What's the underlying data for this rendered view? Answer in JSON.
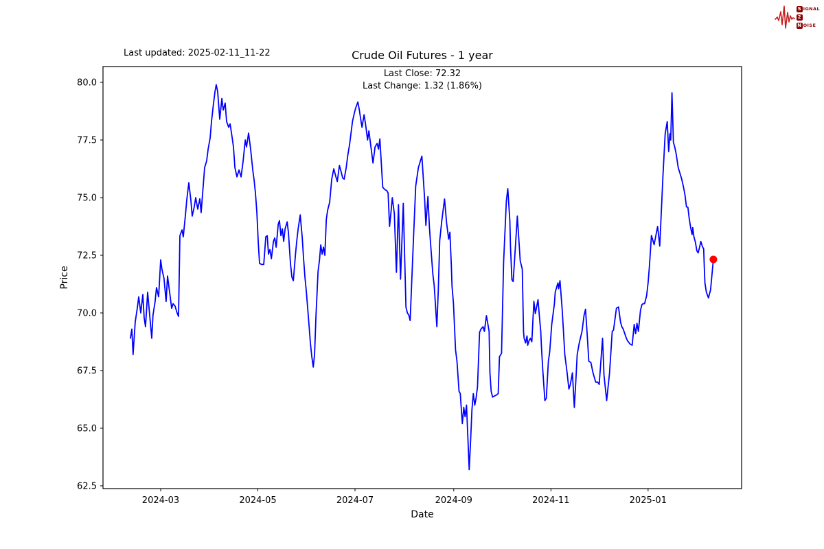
{
  "header": {
    "last_updated": "Last updated: 2025-02-11_11-22"
  },
  "logo": {
    "wave_color": "#c41f1f",
    "text_color": "#8b0000",
    "s": "S",
    "signal_rest": "IGNAL",
    "two": "2",
    "n": "N",
    "noise_rest": "OISE"
  },
  "chart_data": {
    "type": "line",
    "title": "Crude Oil Futures - 1 year",
    "annotation": {
      "line1": "Last Close: 72.32",
      "line2": "Last Change: 1.32 (1.86%)"
    },
    "xlabel": "Date",
    "ylabel": "Price",
    "last_close": 72.32,
    "last_change": "1.32 (1.86%)",
    "line_color": "#0000ff",
    "marker_color": "#ff0000",
    "x_tick_labels": [
      "2024-03",
      "2024-05",
      "2024-07",
      "2024-09",
      "2024-11",
      "2025-01"
    ],
    "x_tick_days": [
      19,
      80,
      141,
      203,
      264,
      325
    ],
    "y_tick_labels": [
      "62.5",
      "65.0",
      "67.5",
      "70.0",
      "72.5",
      "75.0",
      "77.5",
      "80.0"
    ],
    "y_ticks": [
      62.5,
      65.0,
      67.5,
      70.0,
      72.5,
      75.0,
      77.5,
      80.0
    ],
    "start_date": "2024-02-11",
    "end_date": "2025-02-11",
    "xlim_days": [
      -17.2,
      383.7
    ],
    "ylim": [
      62.38,
      80.685
    ],
    "legend": null,
    "grid": false,
    "series": [
      [
        0,
        68.9
      ],
      [
        0.9,
        69.3
      ],
      [
        1.7,
        68.2
      ],
      [
        3,
        69.6
      ],
      [
        4.3,
        70.2
      ],
      [
        5.2,
        70.7
      ],
      [
        6.5,
        70.0
      ],
      [
        7.8,
        70.8
      ],
      [
        8.6,
        69.8
      ],
      [
        9.5,
        69.4
      ],
      [
        10.8,
        70.9
      ],
      [
        12.1,
        69.9
      ],
      [
        13.4,
        68.9
      ],
      [
        14.2,
        69.9
      ],
      [
        15.5,
        70.5
      ],
      [
        16.4,
        71.1
      ],
      [
        17.7,
        70.7
      ],
      [
        19,
        72.3
      ],
      [
        19.8,
        71.9
      ],
      [
        21.1,
        71.5
      ],
      [
        22.4,
        70.5
      ],
      [
        23.3,
        71.6
      ],
      [
        24.6,
        70.9
      ],
      [
        25.9,
        70.2
      ],
      [
        26.8,
        70.4
      ],
      [
        28,
        70.3
      ],
      [
        29.3,
        70.0
      ],
      [
        30.2,
        69.85
      ],
      [
        31.1,
        73.35
      ],
      [
        32.4,
        73.6
      ],
      [
        33.2,
        73.3
      ],
      [
        34.5,
        74.2
      ],
      [
        35.4,
        74.9
      ],
      [
        36.7,
        75.65
      ],
      [
        38,
        74.85
      ],
      [
        38.8,
        74.2
      ],
      [
        40.1,
        74.6
      ],
      [
        41,
        75.0
      ],
      [
        42.3,
        74.5
      ],
      [
        43.6,
        74.95
      ],
      [
        44.4,
        74.35
      ],
      [
        45.7,
        75.5
      ],
      [
        46.6,
        76.3
      ],
      [
        47.9,
        76.6
      ],
      [
        48.8,
        77.1
      ],
      [
        50.1,
        77.6
      ],
      [
        50.9,
        78.3
      ],
      [
        52.2,
        79.1
      ],
      [
        53.1,
        79.6
      ],
      [
        53.9,
        79.9
      ],
      [
        54.8,
        79.6
      ],
      [
        56.1,
        78.4
      ],
      [
        57.4,
        79.3
      ],
      [
        58.3,
        78.8
      ],
      [
        59.5,
        79.1
      ],
      [
        60.4,
        78.3
      ],
      [
        61.7,
        78.05
      ],
      [
        62.6,
        78.2
      ],
      [
        63.9,
        77.6
      ],
      [
        64.7,
        77.2
      ],
      [
        65.6,
        76.3
      ],
      [
        66.9,
        75.9
      ],
      [
        68.2,
        76.2
      ],
      [
        69.5,
        75.9
      ],
      [
        70.8,
        76.6
      ],
      [
        72.1,
        77.5
      ],
      [
        72.9,
        77.2
      ],
      [
        74.2,
        77.8
      ],
      [
        75.5,
        77.1
      ],
      [
        76.8,
        76.2
      ],
      [
        77.7,
        75.75
      ],
      [
        78.5,
        75.2
      ],
      [
        79.4,
        74.35
      ],
      [
        80.3,
        73.0
      ],
      [
        81.1,
        72.15
      ],
      [
        82.4,
        72.1
      ],
      [
        83.7,
        72.1
      ],
      [
        85,
        73.3
      ],
      [
        85.9,
        73.35
      ],
      [
        86.7,
        72.55
      ],
      [
        87.6,
        72.75
      ],
      [
        88.5,
        72.35
      ],
      [
        89.8,
        73.1
      ],
      [
        90.6,
        73.25
      ],
      [
        91.5,
        72.85
      ],
      [
        92.8,
        73.85
      ],
      [
        93.6,
        74.0
      ],
      [
        94.5,
        73.35
      ],
      [
        95.4,
        73.65
      ],
      [
        96.2,
        73.1
      ],
      [
        97.1,
        73.65
      ],
      [
        98.4,
        73.95
      ],
      [
        99.2,
        73.5
      ],
      [
        100.5,
        72.15
      ],
      [
        101.4,
        71.55
      ],
      [
        102.3,
        71.4
      ],
      [
        103.6,
        72.5
      ],
      [
        104.4,
        73.1
      ],
      [
        105.3,
        73.65
      ],
      [
        106.6,
        74.25
      ],
      [
        107.9,
        73.25
      ],
      [
        108.7,
        72.35
      ],
      [
        109.6,
        71.55
      ],
      [
        110.5,
        70.9
      ],
      [
        111.3,
        70.2
      ],
      [
        112.2,
        69.4
      ],
      [
        113,
        68.7
      ],
      [
        113.9,
        68.1
      ],
      [
        114.8,
        67.65
      ],
      [
        115.6,
        68.2
      ],
      [
        116.5,
        69.9
      ],
      [
        117.8,
        71.8
      ],
      [
        118.7,
        72.3
      ],
      [
        119.5,
        72.95
      ],
      [
        120.4,
        72.55
      ],
      [
        121.2,
        72.85
      ],
      [
        122.1,
        72.5
      ],
      [
        123,
        74.05
      ],
      [
        123.8,
        74.45
      ],
      [
        125.1,
        74.8
      ],
      [
        126.4,
        75.8
      ],
      [
        127.7,
        76.25
      ],
      [
        129,
        75.9
      ],
      [
        129.9,
        75.7
      ],
      [
        131.2,
        76.4
      ],
      [
        132,
        76.2
      ],
      [
        133.3,
        75.85
      ],
      [
        134.2,
        75.8
      ],
      [
        135.5,
        76.3
      ],
      [
        136.4,
        76.8
      ],
      [
        137.6,
        77.3
      ],
      [
        138.5,
        77.8
      ],
      [
        139.4,
        78.3
      ],
      [
        140.7,
        78.7
      ],
      [
        141.5,
        78.9
      ],
      [
        142.8,
        79.15
      ],
      [
        143.7,
        78.8
      ],
      [
        144.6,
        78.4
      ],
      [
        145.4,
        78.05
      ],
      [
        146.7,
        78.6
      ],
      [
        147.6,
        78.2
      ],
      [
        148.9,
        77.5
      ],
      [
        149.7,
        77.9
      ],
      [
        151,
        77.2
      ],
      [
        152.3,
        76.5
      ],
      [
        153.6,
        77.2
      ],
      [
        154.9,
        77.35
      ],
      [
        155.8,
        77.1
      ],
      [
        156.6,
        77.55
      ],
      [
        157.5,
        76.5
      ],
      [
        158.4,
        75.45
      ],
      [
        159.7,
        75.35
      ],
      [
        161,
        75.3
      ],
      [
        161.8,
        75.2
      ],
      [
        162.7,
        73.75
      ],
      [
        163.5,
        74.3
      ],
      [
        164.4,
        75.0
      ],
      [
        165.7,
        74.3
      ],
      [
        167,
        71.76
      ],
      [
        168.3,
        74.7
      ],
      [
        169.6,
        71.46
      ],
      [
        171.3,
        74.75
      ],
      [
        173,
        70.25
      ],
      [
        173.9,
        70.0
      ],
      [
        174.8,
        69.9
      ],
      [
        175.6,
        69.67
      ],
      [
        177.8,
        73.4
      ],
      [
        179.1,
        75.5
      ],
      [
        180.8,
        76.3
      ],
      [
        183,
        76.8
      ],
      [
        184.7,
        74.94
      ],
      [
        185.5,
        73.8
      ],
      [
        186.8,
        75.05
      ],
      [
        187.7,
        73.75
      ],
      [
        188.6,
        72.86
      ],
      [
        189.9,
        71.67
      ],
      [
        190.7,
        71.2
      ],
      [
        191.2,
        70.7
      ],
      [
        192.4,
        69.4
      ],
      [
        193.3,
        71.0
      ],
      [
        194.2,
        73.15
      ],
      [
        195.5,
        74.0
      ],
      [
        197.2,
        74.94
      ],
      [
        198.5,
        73.9
      ],
      [
        199.8,
        73.2
      ],
      [
        200.6,
        73.5
      ],
      [
        201.5,
        72.05
      ],
      [
        201.9,
        71.16
      ],
      [
        202.8,
        70.4
      ],
      [
        204.1,
        68.4
      ],
      [
        205,
        67.9
      ],
      [
        206.3,
        66.6
      ],
      [
        207.1,
        66.5
      ],
      [
        208.4,
        65.2
      ],
      [
        209.3,
        65.9
      ],
      [
        210.1,
        65.5
      ],
      [
        211,
        66.0
      ],
      [
        211.9,
        64.5
      ],
      [
        212.7,
        63.2
      ],
      [
        213.6,
        64.5
      ],
      [
        214.4,
        65.8
      ],
      [
        215.3,
        66.5
      ],
      [
        216.2,
        66.0
      ],
      [
        217,
        66.3
      ],
      [
        217.9,
        66.8
      ],
      [
        219.2,
        69.16
      ],
      [
        220.1,
        69.3
      ],
      [
        221.4,
        69.4
      ],
      [
        222.2,
        69.2
      ],
      [
        223.5,
        69.88
      ],
      [
        225.2,
        69.2
      ],
      [
        225.7,
        67.4
      ],
      [
        226.5,
        66.6
      ],
      [
        227.4,
        66.35
      ],
      [
        228.7,
        66.4
      ],
      [
        230,
        66.45
      ],
      [
        230.9,
        66.5
      ],
      [
        231.7,
        68.1
      ],
      [
        233,
        68.25
      ],
      [
        234.3,
        72.2
      ],
      [
        236,
        74.85
      ],
      [
        236.9,
        75.39
      ],
      [
        238.2,
        74.0
      ],
      [
        238.6,
        72.9
      ],
      [
        239.5,
        71.44
      ],
      [
        240.3,
        71.36
      ],
      [
        240.8,
        71.9
      ],
      [
        242.9,
        74.2
      ],
      [
        244.7,
        72.26
      ],
      [
        246,
        71.9
      ],
      [
        246.8,
        69.2
      ],
      [
        247.2,
        68.9
      ],
      [
        248.1,
        68.7
      ],
      [
        249,
        69.0
      ],
      [
        249.4,
        68.6
      ],
      [
        250.3,
        68.8
      ],
      [
        251.1,
        68.9
      ],
      [
        252,
        68.75
      ],
      [
        253.3,
        70.5
      ],
      [
        254.2,
        69.97
      ],
      [
        255.9,
        70.57
      ],
      [
        256.7,
        69.9
      ],
      [
        257.6,
        69.2
      ],
      [
        258,
        68.6
      ],
      [
        258.9,
        67.5
      ],
      [
        259.8,
        66.6
      ],
      [
        260.2,
        66.2
      ],
      [
        261.1,
        66.3
      ],
      [
        262.4,
        67.9
      ],
      [
        263.2,
        68.3
      ],
      [
        264.5,
        69.5
      ],
      [
        266.2,
        70.4
      ],
      [
        266.7,
        70.9
      ],
      [
        268.4,
        71.3
      ],
      [
        268.8,
        71.05
      ],
      [
        269.7,
        71.4
      ],
      [
        271,
        70.2
      ],
      [
        271.9,
        69.2
      ],
      [
        272.7,
        68.2
      ],
      [
        274,
        67.5
      ],
      [
        275.3,
        66.7
      ],
      [
        276.2,
        66.9
      ],
      [
        277.5,
        67.4
      ],
      [
        278.7,
        65.9
      ],
      [
        279.6,
        67.0
      ],
      [
        280.5,
        68.2
      ],
      [
        281.8,
        68.7
      ],
      [
        283.5,
        69.2
      ],
      [
        284.8,
        69.9
      ],
      [
        285.7,
        70.16
      ],
      [
        287,
        68.8
      ],
      [
        287.8,
        67.9
      ],
      [
        289.1,
        67.85
      ],
      [
        290.4,
        67.4
      ],
      [
        292.1,
        67.0
      ],
      [
        293.4,
        67.0
      ],
      [
        294.3,
        66.9
      ],
      [
        296.4,
        68.9
      ],
      [
        297.3,
        67.3
      ],
      [
        299,
        66.2
      ],
      [
        300.8,
        67.4
      ],
      [
        302.5,
        69.2
      ],
      [
        303.3,
        69.26
      ],
      [
        305.1,
        70.2
      ],
      [
        306.4,
        70.26
      ],
      [
        307.7,
        69.6
      ],
      [
        308.5,
        69.4
      ],
      [
        309.4,
        69.3
      ],
      [
        311.1,
        68.95
      ],
      [
        312,
        68.8
      ],
      [
        313.7,
        68.65
      ],
      [
        315,
        68.6
      ],
      [
        316.3,
        69.5
      ],
      [
        317.2,
        69.1
      ],
      [
        318,
        69.55
      ],
      [
        318.9,
        69.2
      ],
      [
        320.2,
        70.1
      ],
      [
        321.1,
        70.36
      ],
      [
        321.9,
        70.4
      ],
      [
        322.8,
        70.4
      ],
      [
        324.1,
        70.75
      ],
      [
        325,
        71.3
      ],
      [
        325.8,
        72.0
      ],
      [
        327.1,
        73.36
      ],
      [
        328.8,
        72.96
      ],
      [
        331,
        73.75
      ],
      [
        332.3,
        72.9
      ],
      [
        334.4,
        76.03
      ],
      [
        335.7,
        77.77
      ],
      [
        337,
        78.3
      ],
      [
        337.9,
        77.0
      ],
      [
        338.7,
        77.77
      ],
      [
        339.2,
        77.5
      ],
      [
        340,
        79.55
      ],
      [
        340.9,
        77.4
      ],
      [
        341.7,
        77.2
      ],
      [
        342.6,
        76.9
      ],
      [
        343.9,
        76.3
      ],
      [
        344.8,
        76.1
      ],
      [
        346.1,
        75.8
      ],
      [
        347.4,
        75.4
      ],
      [
        348.2,
        75.1
      ],
      [
        349.1,
        74.6
      ],
      [
        350,
        74.58
      ],
      [
        350.8,
        74.1
      ],
      [
        351.7,
        73.7
      ],
      [
        352.6,
        73.4
      ],
      [
        353,
        73.7
      ],
      [
        353.8,
        73.3
      ],
      [
        354.7,
        73.07
      ],
      [
        355.6,
        72.7
      ],
      [
        356.4,
        72.6
      ],
      [
        357.3,
        72.85
      ],
      [
        358.1,
        73.1
      ],
      [
        359,
        72.9
      ],
      [
        359.9,
        72.77
      ],
      [
        360.3,
        71.96
      ],
      [
        360.7,
        71.3
      ],
      [
        361.6,
        70.9
      ],
      [
        362.9,
        70.65
      ],
      [
        364.2,
        71.0
      ],
      [
        366,
        72.32
      ]
    ]
  }
}
